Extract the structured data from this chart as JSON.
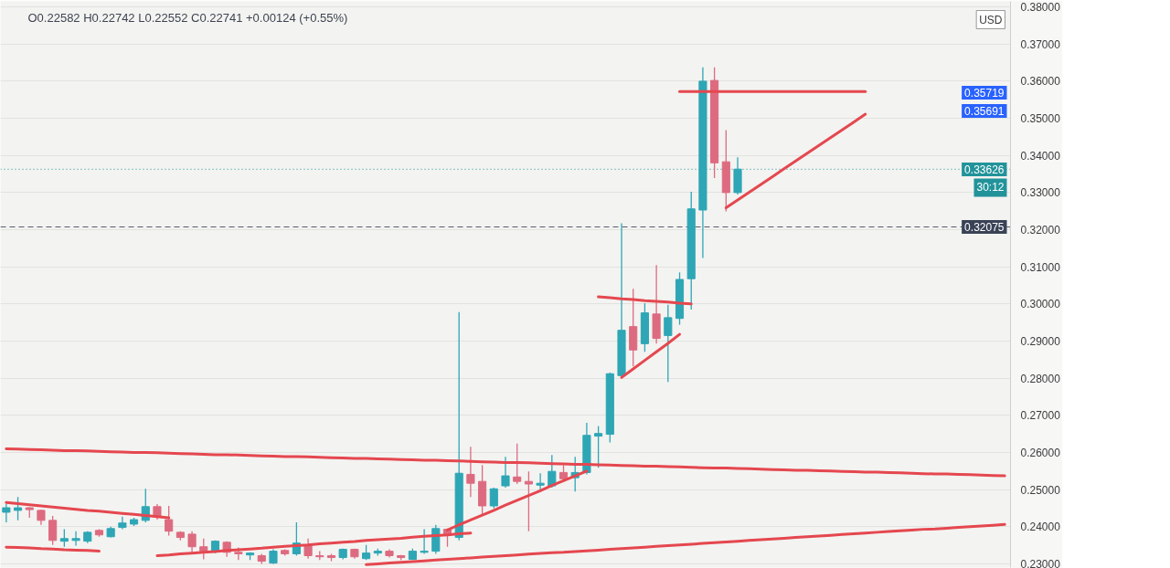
{
  "chart_data": {
    "type": "candlestick",
    "title": "O0.22582 H0.22742 L0.22552 C0.22741 +0.00124 (+0.55%)",
    "ylabel": "USD",
    "categories": [
      null,
      null,
      null,
      null,
      null,
      null,
      null,
      null,
      null,
      null,
      null,
      null,
      null,
      null,
      null,
      null,
      null,
      null,
      null,
      null,
      null,
      null,
      null,
      null,
      null,
      null,
      null,
      null,
      null,
      null,
      null,
      null,
      null,
      null,
      null,
      null,
      null,
      null,
      null,
      null,
      null,
      null,
      null,
      null,
      null,
      null,
      null,
      null,
      null,
      null,
      null,
      null,
      null,
      null,
      null,
      null,
      null,
      null,
      null,
      null,
      null,
      null,
      null,
      null,
      null,
      null,
      null,
      null,
      null,
      null,
      null,
      null,
      null,
      null,
      null,
      null,
      null,
      null,
      null,
      null,
      null,
      null,
      null,
      null,
      null,
      null,
      null
    ],
    "ohlc": [
      [
        0.2439,
        0.2461,
        0.2412,
        0.2451
      ],
      [
        0.2444,
        0.248,
        0.2417,
        0.2451
      ],
      [
        0.2451,
        0.2453,
        0.2424,
        0.2446
      ],
      [
        0.2444,
        0.2446,
        0.2405,
        0.2417
      ],
      [
        0.2417,
        0.2429,
        0.2351,
        0.2363
      ],
      [
        0.2361,
        0.2393,
        0.2346,
        0.2368
      ],
      [
        0.2363,
        0.2388,
        0.2349,
        0.2368
      ],
      [
        0.2361,
        0.2388,
        0.2356,
        0.2385
      ],
      [
        0.239,
        0.2393,
        0.2373,
        0.2378
      ],
      [
        0.2373,
        0.24,
        0.2371,
        0.2395
      ],
      [
        0.2398,
        0.2427,
        0.2393,
        0.241
      ],
      [
        0.2407,
        0.2424,
        0.2402,
        0.2419
      ],
      [
        0.2417,
        0.2502,
        0.2412,
        0.2454
      ],
      [
        0.2454,
        0.2461,
        0.2419,
        0.2429
      ],
      [
        0.2419,
        0.2456,
        0.2376,
        0.2388
      ],
      [
        0.2385,
        0.2388,
        0.2363,
        0.2371
      ],
      [
        0.238,
        0.2388,
        0.2331,
        0.2346
      ],
      [
        0.2346,
        0.2368,
        0.2312,
        0.2334
      ],
      [
        0.2334,
        0.2363,
        0.2329,
        0.2361
      ],
      [
        0.2358,
        0.2361,
        0.2319,
        0.2331
      ],
      [
        0.2331,
        0.2344,
        0.231,
        0.2327
      ],
      [
        0.2324,
        0.2331,
        0.231,
        0.2329
      ],
      [
        0.2322,
        0.2327,
        0.23,
        0.2307
      ],
      [
        0.2302,
        0.2339,
        0.23,
        0.2334
      ],
      [
        0.2336,
        0.2339,
        0.2322,
        0.2327
      ],
      [
        0.2327,
        0.2412,
        0.2322,
        0.2356
      ],
      [
        0.2351,
        0.2368,
        0.2314,
        0.2322
      ],
      [
        0.2322,
        0.2334,
        0.231,
        0.2319
      ],
      [
        0.2322,
        0.2327,
        0.2307,
        0.2317
      ],
      [
        0.2317,
        0.2341,
        0.2312,
        0.2339
      ],
      [
        0.2339,
        0.2341,
        0.2314,
        0.2319
      ],
      [
        0.2314,
        0.2351,
        0.231,
        0.2329
      ],
      [
        0.2329,
        0.2341,
        0.2322,
        0.2334
      ],
      [
        0.2334,
        0.2339,
        0.2317,
        0.2322
      ],
      [
        0.2322,
        0.2324,
        0.231,
        0.2317
      ],
      [
        0.2312,
        0.2341,
        0.231,
        0.2334
      ],
      [
        0.2331,
        0.2393,
        0.2327,
        0.2334
      ],
      [
        0.2334,
        0.2405,
        0.2327,
        0.2395
      ],
      [
        0.2393,
        0.2395,
        0.2346,
        0.2376
      ],
      [
        0.2371,
        0.2978,
        0.2363,
        0.2544
      ],
      [
        0.2541,
        0.2615,
        0.248,
        0.2517
      ],
      [
        0.2522,
        0.2566,
        0.2432,
        0.2456
      ],
      [
        0.2456,
        0.2505,
        0.2449,
        0.2502
      ],
      [
        0.251,
        0.2588,
        0.2505,
        0.2537
      ],
      [
        0.2534,
        0.2624,
        0.2515,
        0.2522
      ],
      [
        0.2522,
        0.2549,
        0.2388,
        0.2515
      ],
      [
        0.2512,
        0.2544,
        0.2498,
        0.2517
      ],
      [
        0.251,
        0.2593,
        0.2505,
        0.2549
      ],
      [
        0.2546,
        0.2566,
        0.2522,
        0.2529
      ],
      [
        0.2532,
        0.2588,
        0.2495,
        0.2546
      ],
      [
        0.2546,
        0.268,
        0.2541,
        0.2646
      ],
      [
        0.2644,
        0.2671,
        0.2559,
        0.2651
      ],
      [
        0.2649,
        0.2815,
        0.2627,
        0.2812
      ],
      [
        0.2807,
        0.3217,
        0.2802,
        0.2929
      ],
      [
        0.2939,
        0.3041,
        0.2832,
        0.2876
      ],
      [
        0.2893,
        0.3002,
        0.2871,
        0.2976
      ],
      [
        0.2973,
        0.3105,
        0.2893,
        0.2907
      ],
      [
        0.2915,
        0.2998,
        0.279,
        0.2963
      ],
      [
        0.2961,
        0.3085,
        0.2944,
        0.3066
      ],
      [
        0.3068,
        0.3302,
        0.2985,
        0.3256
      ],
      [
        0.3253,
        0.3637,
        0.3124,
        0.36
      ],
      [
        0.3602,
        0.3637,
        0.3339,
        0.338
      ],
      [
        0.3383,
        0.3468,
        0.3249,
        0.33
      ],
      [
        0.33,
        0.3395,
        0.3295,
        0.3363
      ],
      null,
      null,
      null,
      null,
      null,
      null,
      null,
      null,
      null,
      null,
      null,
      null,
      null,
      null,
      null,
      null,
      null,
      null,
      null,
      null,
      null,
      null,
      null
    ],
    "colors": [
      "#2ea6b5",
      "#2ea6b5",
      "#dd6b80",
      "#dd6b80",
      "#dd6b80",
      "#2ea6b5",
      "#2ea6b5",
      "#2ea6b5",
      "#dd6b80",
      "#2ea6b5",
      "#2ea6b5",
      "#2ea6b5",
      "#2ea6b5",
      "#dd6b80",
      "#dd6b80",
      "#dd6b80",
      "#dd6b80",
      "#dd6b80",
      "#2ea6b5",
      "#dd6b80",
      "#dd6b80",
      "#2ea6b5",
      "#dd6b80",
      "#2ea6b5",
      "#dd6b80",
      "#2ea6b5",
      "#dd6b80",
      "#dd6b80",
      "#dd6b80",
      "#2ea6b5",
      "#dd6b80",
      "#2ea6b5",
      "#2ea6b5",
      "#dd6b80",
      "#dd6b80",
      "#2ea6b5",
      "#2ea6b5",
      "#2ea6b5",
      "#dd6b80",
      "#2ea6b5",
      "#dd6b80",
      "#dd6b80",
      "#2ea6b5",
      "#2ea6b5",
      "#dd6b80",
      "#dd6b80",
      "#2ea6b5",
      "#2ea6b5",
      "#dd6b80",
      "#2ea6b5",
      "#2ea6b5",
      "#2ea6b5",
      "#2ea6b5",
      "#2ea6b5",
      "#dd6b80",
      "#2ea6b5",
      "#dd6b80",
      "#2ea6b5",
      "#2ea6b5",
      "#2ea6b5",
      "#2ea6b5",
      "#dd6b80",
      "#dd6b80",
      "#2ea6b5",
      null,
      null,
      null,
      null,
      null,
      null,
      null,
      null,
      null,
      null,
      null,
      null,
      null,
      null,
      null,
      null,
      null,
      null,
      null,
      null,
      null,
      null,
      null
    ],
    "series": [
      {
        "type": "line",
        "color": "#e5474f",
        "values": [
          0.261,
          0.2609,
          0.2608,
          0.2607,
          0.2606,
          0.2605,
          0.2605,
          0.2604,
          0.2603,
          0.2602,
          0.2601,
          0.26,
          0.26,
          0.2599,
          0.2598,
          0.2597,
          0.2596,
          0.2595,
          0.2594,
          0.2594,
          0.2593,
          0.2592,
          0.2591,
          0.259,
          0.2589,
          0.2589,
          0.2588,
          0.2587,
          0.2586,
          0.2585,
          0.2584,
          0.2584,
          0.2583,
          0.2582,
          0.2581,
          0.258,
          0.2579,
          0.2579,
          0.2578,
          0.2577,
          0.2576,
          0.2575,
          0.2574,
          0.2573,
          0.2573,
          0.2572,
          0.2571,
          0.257,
          0.2569,
          0.2568,
          0.2568,
          0.2567,
          0.2566,
          0.2565,
          0.2564,
          0.2563,
          0.2563,
          0.2562,
          0.2561,
          0.256,
          0.2559,
          0.2558,
          0.2558,
          0.2557,
          0.2556,
          0.2555,
          0.2554,
          0.2553,
          0.2552,
          0.2552,
          0.2551,
          0.255,
          0.2549,
          0.2548,
          0.2547,
          0.2547,
          0.2546,
          0.2545,
          0.2544,
          0.2543,
          0.2542,
          0.2542,
          0.2541,
          0.254,
          0.2539,
          0.2538,
          0.2537
        ]
      },
      {
        "type": "line",
        "color": "#e5474f",
        "values": [
          null,
          null,
          null,
          null,
          null,
          null,
          null,
          null,
          null,
          null,
          null,
          null,
          null,
          null,
          null,
          null,
          null,
          null,
          null,
          null,
          null,
          null,
          null,
          null,
          null,
          null,
          null,
          null,
          null,
          null,
          null,
          0.2298,
          0.23,
          0.2302,
          0.2304,
          0.2306,
          0.2308,
          0.231,
          0.2312,
          0.2314,
          0.2316,
          0.2318,
          0.232,
          0.2322,
          0.2324,
          0.2326,
          0.2328,
          0.233,
          0.2331,
          0.2333,
          0.2335,
          0.2337,
          0.2339,
          0.2341,
          0.2343,
          0.2345,
          0.2347,
          0.2349,
          0.2351,
          0.2353,
          0.2355,
          0.2357,
          0.2359,
          0.2361,
          0.2363,
          0.2365,
          0.2367,
          0.2369,
          0.2371,
          0.2373,
          0.2375,
          0.2377,
          0.2379,
          0.2381,
          0.2383,
          0.2385,
          0.2387,
          0.2389,
          0.2391,
          0.2393,
          0.2394,
          0.2396,
          0.2398,
          0.24,
          0.2402,
          0.2404,
          0.2406
        ]
      },
      {
        "type": "line",
        "color": "#e5474f",
        "values": [
          0.2465,
          0.2462,
          0.2459,
          0.2456,
          0.2453,
          0.245,
          0.2447,
          0.2444,
          0.2442,
          0.2439,
          0.2436,
          0.2433,
          0.243,
          0.2427,
          0.2424,
          null,
          null,
          null,
          null,
          null,
          null,
          null,
          null,
          null,
          null,
          null,
          null,
          null,
          null,
          null,
          null,
          null,
          null,
          null,
          null,
          null,
          null,
          null,
          null,
          null,
          null,
          null,
          null,
          null,
          null,
          null,
          null,
          null,
          null,
          null,
          null,
          null,
          null,
          null,
          null,
          null,
          null,
          null,
          null,
          null,
          null,
          null,
          null,
          null,
          null,
          null,
          null,
          null,
          null,
          null,
          null,
          null,
          null,
          null,
          null,
          null,
          null,
          null,
          null,
          null,
          null,
          null,
          null,
          null,
          null,
          null,
          null
        ]
      },
      {
        "type": "line",
        "color": "#e5474f",
        "values": [
          0.2345,
          0.2344,
          0.2343,
          0.2341,
          0.234,
          0.2338,
          0.2337,
          0.2336,
          0.2334,
          null,
          null,
          null,
          null,
          null,
          null,
          null,
          null,
          null,
          null,
          null,
          null,
          null,
          null,
          null,
          null,
          null,
          null,
          null,
          null,
          null,
          null,
          null,
          null,
          null,
          null,
          null,
          null,
          null,
          null,
          null,
          null,
          null,
          null,
          null,
          null,
          null,
          null,
          null,
          null,
          null,
          null,
          null,
          null,
          null,
          null,
          null,
          null,
          null,
          null,
          null,
          null,
          null,
          null,
          null,
          null,
          null,
          null,
          null,
          null,
          null,
          null,
          null,
          null,
          null,
          null,
          null,
          null,
          null,
          null,
          null,
          null,
          null,
          null,
          null,
          null,
          null,
          null
        ]
      },
      {
        "type": "line",
        "color": "#e5474f",
        "values": [
          null,
          null,
          null,
          null,
          null,
          null,
          null,
          null,
          null,
          null,
          null,
          null,
          null,
          0.2322,
          0.2324,
          0.2327,
          0.2329,
          0.2331,
          0.2333,
          0.2336,
          0.2338,
          0.234,
          0.2342,
          0.2345,
          0.2347,
          0.2349,
          0.2351,
          0.2354,
          0.2356,
          0.2358,
          0.236,
          0.2363,
          0.2365,
          0.2367,
          0.2369,
          0.2372,
          0.2374,
          0.2376,
          0.2378,
          0.2381,
          0.2383,
          null,
          null,
          null,
          null,
          null,
          null,
          null,
          null,
          null,
          null,
          null,
          null,
          null,
          null,
          null,
          null,
          null,
          null,
          null,
          null,
          null,
          null,
          null,
          null,
          null,
          null,
          null,
          null,
          null,
          null,
          null,
          null,
          null,
          null,
          null,
          null,
          null,
          null,
          null,
          null,
          null,
          null,
          null,
          null,
          null,
          null
        ]
      },
      {
        "type": "line",
        "color": "#e5474f",
        "values": [
          null,
          null,
          null,
          null,
          null,
          null,
          null,
          null,
          null,
          null,
          null,
          null,
          null,
          null,
          null,
          null,
          null,
          null,
          null,
          null,
          null,
          null,
          null,
          null,
          null,
          null,
          null,
          null,
          null,
          null,
          null,
          null,
          null,
          null,
          null,
          null,
          null,
          null,
          0.2391,
          0.2405,
          0.2418,
          0.2431,
          0.2444,
          0.2458,
          0.2471,
          0.2484,
          0.2497,
          0.2511,
          0.2524,
          0.2537,
          0.255,
          null,
          null,
          null,
          null,
          null,
          null,
          null,
          null,
          null,
          null,
          null,
          null,
          null,
          null,
          null,
          null,
          null,
          null,
          null,
          null,
          null,
          null,
          null,
          null,
          null,
          null,
          null,
          null,
          null,
          null,
          null,
          null,
          null,
          null,
          null,
          null
        ]
      },
      {
        "type": "line",
        "color": "#e5474f",
        "values": [
          null,
          null,
          null,
          null,
          null,
          null,
          null,
          null,
          null,
          null,
          null,
          null,
          null,
          null,
          null,
          null,
          null,
          null,
          null,
          null,
          null,
          null,
          null,
          null,
          null,
          null,
          null,
          null,
          null,
          null,
          null,
          null,
          null,
          null,
          null,
          null,
          null,
          null,
          null,
          null,
          null,
          null,
          null,
          null,
          null,
          null,
          null,
          null,
          null,
          null,
          null,
          0.3019,
          0.3017,
          0.3014,
          0.3012,
          0.3009,
          0.3007,
          0.3005,
          0.3002,
          0.3,
          null,
          null,
          null,
          null,
          null,
          null,
          null,
          null,
          null,
          null,
          null,
          null,
          null,
          null,
          null,
          null,
          null,
          null,
          null,
          null,
          null,
          null,
          null,
          null,
          null,
          null,
          null
        ]
      },
      {
        "type": "line",
        "color": "#e5474f",
        "values": [
          null,
          null,
          null,
          null,
          null,
          null,
          null,
          null,
          null,
          null,
          null,
          null,
          null,
          null,
          null,
          null,
          null,
          null,
          null,
          null,
          null,
          null,
          null,
          null,
          null,
          null,
          null,
          null,
          null,
          null,
          null,
          null,
          null,
          null,
          null,
          null,
          null,
          null,
          null,
          null,
          null,
          null,
          null,
          null,
          null,
          null,
          null,
          null,
          null,
          null,
          null,
          null,
          null,
          0.2802,
          0.2825,
          0.2848,
          0.2871,
          0.2894,
          0.2918,
          null,
          null,
          null,
          null,
          null,
          null,
          null,
          null,
          null,
          null,
          null,
          null,
          null,
          null,
          null,
          null,
          null,
          null,
          null,
          null,
          null,
          null,
          null,
          null,
          null,
          null,
          null,
          null
        ]
      },
      {
        "type": "line",
        "color": "#e5474f",
        "values": [
          null,
          null,
          null,
          null,
          null,
          null,
          null,
          null,
          null,
          null,
          null,
          null,
          null,
          null,
          null,
          null,
          null,
          null,
          null,
          null,
          null,
          null,
          null,
          null,
          null,
          null,
          null,
          null,
          null,
          null,
          null,
          null,
          null,
          null,
          null,
          null,
          null,
          null,
          null,
          null,
          null,
          null,
          null,
          null,
          null,
          null,
          null,
          null,
          null,
          null,
          null,
          null,
          null,
          null,
          null,
          null,
          null,
          null,
          0.3572,
          0.3572,
          0.3572,
          0.3572,
          0.3572,
          0.3572,
          0.3572,
          0.3572,
          0.3572,
          0.3572,
          0.3572,
          0.3572,
          0.3572,
          0.3572,
          0.3572,
          0.3572,
          0.3572,
          null,
          null,
          null,
          null,
          null,
          null,
          null,
          null,
          null,
          null,
          null,
          null
        ]
      },
      {
        "type": "line",
        "color": "#e5474f",
        "values": [
          null,
          null,
          null,
          null,
          null,
          null,
          null,
          null,
          null,
          null,
          null,
          null,
          null,
          null,
          null,
          null,
          null,
          null,
          null,
          null,
          null,
          null,
          null,
          null,
          null,
          null,
          null,
          null,
          null,
          null,
          null,
          null,
          null,
          null,
          null,
          null,
          null,
          null,
          null,
          null,
          null,
          null,
          null,
          null,
          null,
          null,
          null,
          null,
          null,
          null,
          null,
          null,
          null,
          null,
          null,
          null,
          null,
          null,
          null,
          null,
          null,
          null,
          0.3259,
          0.328,
          0.3301,
          0.3322,
          0.3343,
          0.3364,
          0.3385,
          0.3406,
          0.3427,
          0.3448,
          0.3469,
          0.349,
          0.3511,
          null,
          null,
          null,
          null,
          null,
          null,
          null,
          null,
          null,
          null,
          null,
          null
        ]
      }
    ],
    "ylim": [
      0.229,
      0.3815
    ],
    "yticks": [
      {
        "value": 0.38,
        "label": "0.38000"
      },
      {
        "value": 0.37,
        "label": "0.37000"
      },
      {
        "value": 0.36,
        "label": "0.36000"
      },
      {
        "value": 0.35,
        "label": "0.35000"
      },
      {
        "value": 0.34,
        "label": "0.34000"
      },
      {
        "value": 0.33,
        "label": "0.33000"
      },
      {
        "value": 0.32,
        "label": "0.32000"
      },
      {
        "value": 0.31,
        "label": "0.31000"
      },
      {
        "value": 0.3,
        "label": "0.30000"
      },
      {
        "value": 0.29,
        "label": "0.29000"
      },
      {
        "value": 0.28,
        "label": "0.28000"
      },
      {
        "value": 0.27,
        "label": "0.27000"
      },
      {
        "value": 0.26,
        "label": "0.26000"
      },
      {
        "value": 0.25,
        "label": "0.25000"
      },
      {
        "value": 0.24,
        "label": "0.24000"
      },
      {
        "value": 0.23,
        "label": "0.23000"
      }
    ],
    "ref_lines": [
      {
        "axis": "y",
        "value": 0.33626,
        "label": "0.33626\n30:12",
        "color": "#22939a",
        "line_style": "dotted"
      },
      {
        "axis": "y",
        "value": 0.32075,
        "label": "0.32075",
        "color": "#3a4256",
        "line_style": "dashed"
      }
    ],
    "annotations": [
      "0.35719",
      "0.35691"
    ],
    "grid": "y",
    "tick_labels": "y"
  }
}
